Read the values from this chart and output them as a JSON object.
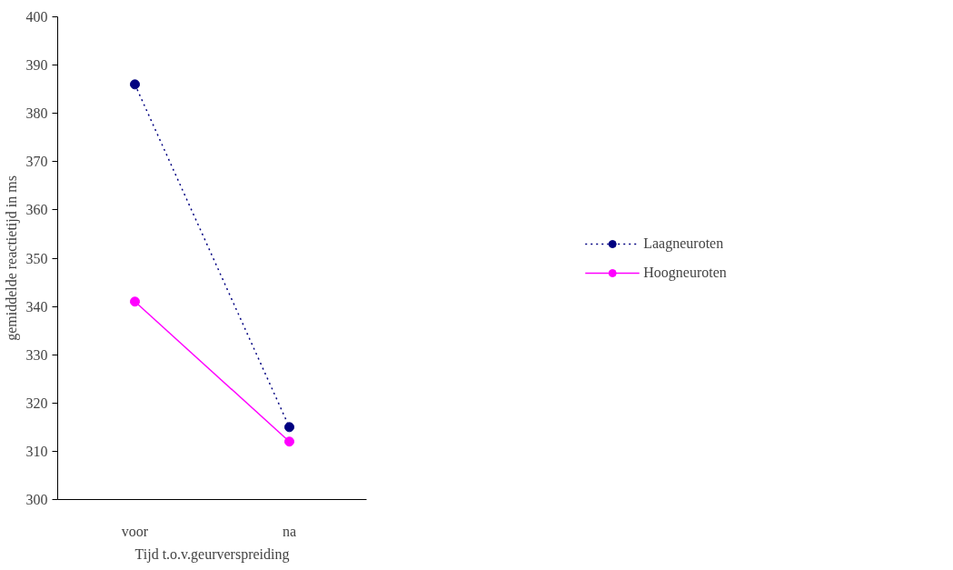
{
  "chart_data": {
    "type": "line",
    "xlabel": "Tijd t.o.v.geurverspreiding",
    "ylabel": "gemiddelde reactietijd in ms",
    "categories": [
      "voor",
      "na"
    ],
    "series": [
      {
        "name": "Laagneuroten",
        "color": "#000080",
        "values": [
          386,
          315
        ],
        "line_style": "dotted"
      },
      {
        "name": "Hoogneuroten",
        "color": "#ff00ff",
        "values": [
          341,
          312
        ],
        "line_style": "solid"
      }
    ],
    "ylim": [
      300,
      400
    ],
    "yticks": [
      300,
      310,
      320,
      330,
      340,
      350,
      360,
      370,
      380,
      390,
      400
    ],
    "grid": false,
    "legend": "right",
    "marker": "circle"
  }
}
